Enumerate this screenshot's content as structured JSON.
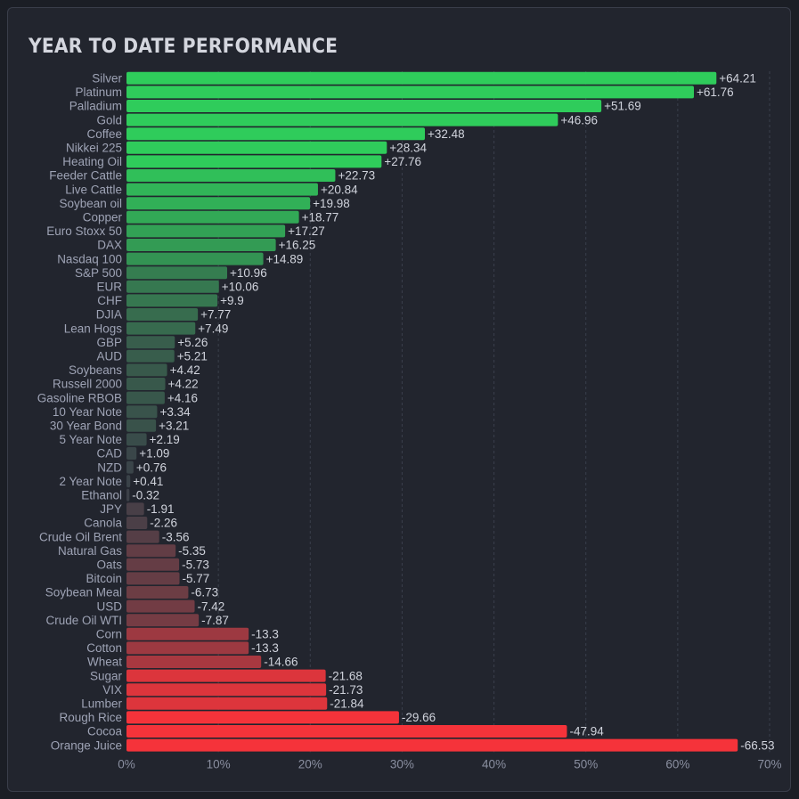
{
  "header": {
    "title": "YEAR TO DATE PERFORMANCE"
  },
  "chart_data": {
    "type": "bar",
    "orientation": "horizontal",
    "title": "YEAR TO DATE PERFORMANCE",
    "xlabel": "",
    "ylabel": "",
    "xlim": [
      0,
      70
    ],
    "x_ticks": [
      "0%",
      "10%",
      "20%",
      "30%",
      "40%",
      "50%",
      "60%",
      "70%"
    ],
    "x_tick_values": [
      0,
      10,
      20,
      30,
      40,
      50,
      60,
      70
    ],
    "bar_length": "absolute value",
    "grid": "vertical dashed",
    "colors": {
      "positive_max": "#2fcc5b",
      "neutral": "#3a4048",
      "negative_max": "#f5333a"
    },
    "categories": [
      "Silver",
      "Platinum",
      "Palladium",
      "Gold",
      "Coffee",
      "Nikkei 225",
      "Heating Oil",
      "Feeder Cattle",
      "Live Cattle",
      "Soybean oil",
      "Copper",
      "Euro Stoxx 50",
      "DAX",
      "Nasdaq 100",
      "S&P 500",
      "EUR",
      "CHF",
      "DJIA",
      "Lean Hogs",
      "GBP",
      "AUD",
      "Soybeans",
      "Russell 2000",
      "Gasoline RBOB",
      "10 Year Note",
      "30 Year Bond",
      "5 Year Note",
      "CAD",
      "NZD",
      "2 Year Note",
      "Ethanol",
      "JPY",
      "Canola",
      "Crude Oil Brent",
      "Natural Gas",
      "Oats",
      "Bitcoin",
      "Soybean Meal",
      "USD",
      "Crude Oil WTI",
      "Corn",
      "Cotton",
      "Wheat",
      "Sugar",
      "VIX",
      "Lumber",
      "Rough Rice",
      "Cocoa",
      "Orange Juice"
    ],
    "values": [
      64.21,
      61.76,
      51.69,
      46.96,
      32.48,
      28.34,
      27.76,
      22.73,
      20.84,
      19.98,
      18.77,
      17.27,
      16.25,
      14.89,
      10.96,
      10.06,
      9.9,
      7.77,
      7.49,
      5.26,
      5.21,
      4.42,
      4.22,
      4.16,
      3.34,
      3.21,
      2.19,
      1.09,
      0.76,
      0.41,
      -0.32,
      -1.91,
      -2.26,
      -3.56,
      -5.35,
      -5.73,
      -5.77,
      -6.73,
      -7.42,
      -7.87,
      -13.3,
      -13.3,
      -14.66,
      -21.68,
      -21.73,
      -21.84,
      -29.66,
      -47.94,
      -66.53
    ],
    "value_labels": [
      "+64.21",
      "+61.76",
      "+51.69",
      "+46.96",
      "+32.48",
      "+28.34",
      "+27.76",
      "+22.73",
      "+20.84",
      "+19.98",
      "+18.77",
      "+17.27",
      "+16.25",
      "+14.89",
      "+10.96",
      "+10.06",
      "+9.9",
      "+7.77",
      "+7.49",
      "+5.26",
      "+5.21",
      "+4.42",
      "+4.22",
      "+4.16",
      "+3.34",
      "+3.21",
      "+2.19",
      "+1.09",
      "+0.76",
      "+0.41",
      "-0.32",
      "-1.91",
      "-2.26",
      "-3.56",
      "-5.35",
      "-5.73",
      "-5.77",
      "-6.73",
      "-7.42",
      "-7.87",
      "-13.3",
      "-13.3",
      "-14.66",
      "-21.68",
      "-21.73",
      "-21.84",
      "-29.66",
      "-47.94",
      "-66.53"
    ]
  }
}
